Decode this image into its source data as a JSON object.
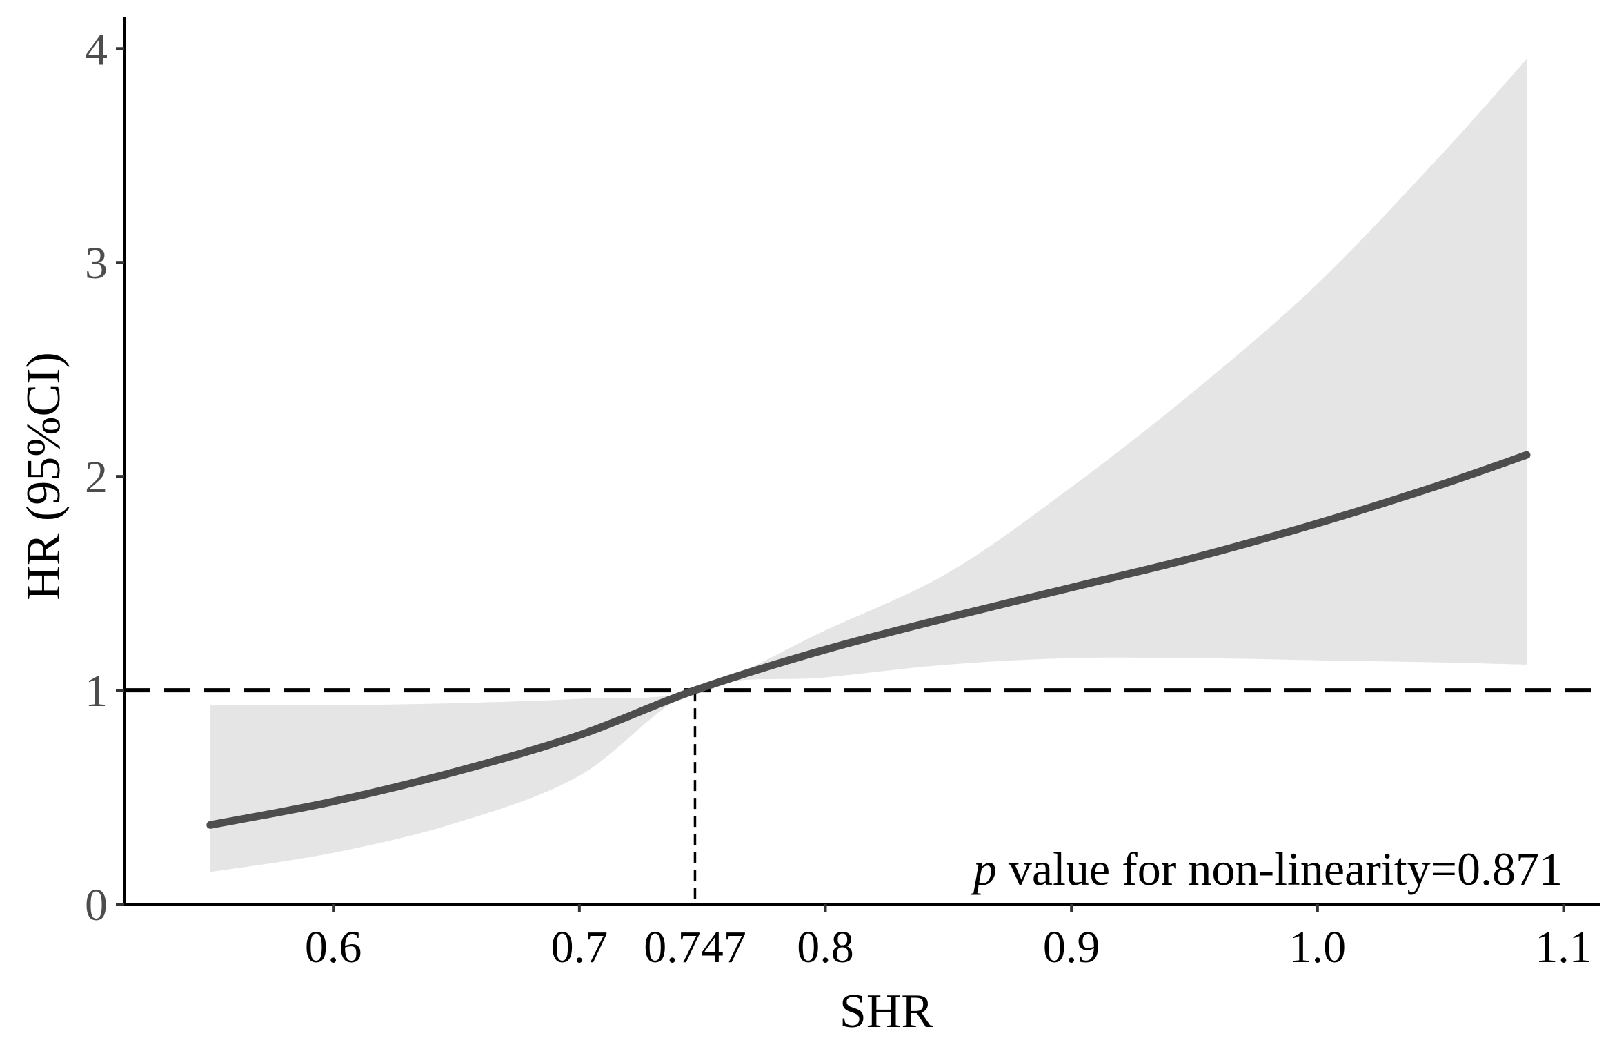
{
  "chart_data": {
    "type": "line",
    "xlabel": "SHR",
    "ylabel": "HR (95%CI)",
    "xlim": [
      0.515,
      1.115
    ],
    "ylim": [
      0,
      4.13
    ],
    "x_ticks": [
      {
        "value": 0.6,
        "label": "0.6"
      },
      {
        "value": 0.7,
        "label": "0.7"
      },
      {
        "value": 0.747,
        "label": "0.747"
      },
      {
        "value": 0.8,
        "label": "0.8"
      },
      {
        "value": 0.9,
        "label": "0.9"
      },
      {
        "value": 1.0,
        "label": "1.0"
      },
      {
        "value": 1.1,
        "label": "1.1"
      }
    ],
    "y_ticks": [
      {
        "value": 0,
        "label": "0"
      },
      {
        "value": 1,
        "label": "1"
      },
      {
        "value": 2,
        "label": "2"
      },
      {
        "value": 3,
        "label": "3"
      },
      {
        "value": 4,
        "label": "4"
      }
    ],
    "reference_hline": 1,
    "reference_vline": 0.747,
    "grid": false,
    "line_color": "#4d4d4d",
    "band_color": "#e5e5e5",
    "series": [
      {
        "x": [
          0.55,
          0.6,
          0.65,
          0.7,
          0.747,
          0.8,
          0.85,
          0.9,
          0.95,
          1.0,
          1.05,
          1.085
        ],
        "hr": [
          0.37,
          0.48,
          0.62,
          0.79,
          1.0,
          1.19,
          1.34,
          1.48,
          1.62,
          1.78,
          1.96,
          2.1
        ],
        "lower": [
          0.15,
          0.24,
          0.38,
          0.6,
          1.0,
          1.06,
          1.12,
          1.15,
          1.15,
          1.14,
          1.13,
          1.12
        ],
        "upper": [
          0.93,
          0.93,
          0.94,
          0.96,
          1.0,
          1.28,
          1.55,
          1.95,
          2.4,
          2.9,
          3.5,
          3.95
        ]
      }
    ],
    "annotation": {
      "p_symbol": "p",
      "text": " value for non-linearity=0.871"
    }
  }
}
